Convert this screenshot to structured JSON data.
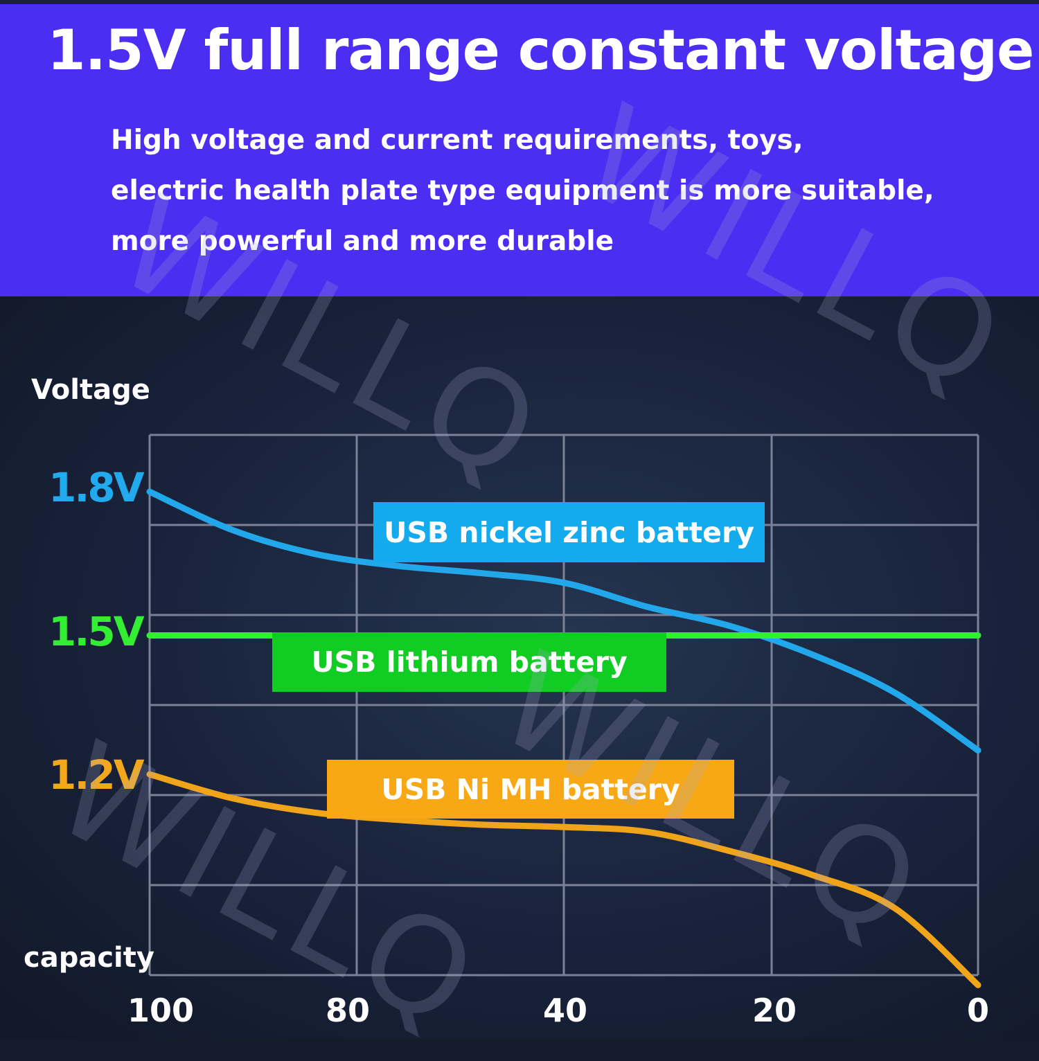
{
  "header": {
    "title": "1.5V full range constant voltage",
    "description_lines": [
      "High voltage and current requirements, toys,",
      "electric health plate type equipment is more suitable,",
      "more powerful and more durable"
    ]
  },
  "watermark_text": "WILLQ",
  "chart_data": {
    "type": "line",
    "ylabel": "Voltage",
    "xlabel": "capacity",
    "x_ticks": [
      "100",
      "80",
      "40",
      "20",
      "0"
    ],
    "y_ticks": [
      {
        "label": "1.8V",
        "value": 1.8,
        "color": "#22aaee"
      },
      {
        "label": "1.5V",
        "value": 1.5,
        "color": "#33ee33"
      },
      {
        "label": "1.2V",
        "value": 1.2,
        "color": "#f2a81a"
      }
    ],
    "grid": true,
    "series": [
      {
        "name": "USB nickel zinc battery",
        "color": "#22a8ea",
        "label_bg": "#14aaee",
        "x": [
          100,
          90,
          80,
          70,
          60,
          50,
          40,
          30,
          20,
          10,
          0
        ],
        "y": [
          1.8,
          1.72,
          1.67,
          1.645,
          1.63,
          1.61,
          1.56,
          1.52,
          1.46,
          1.38,
          1.26
        ]
      },
      {
        "name": "USB lithium battery",
        "color": "#33ee33",
        "label_bg": "#11cc22",
        "x": [
          100,
          0
        ],
        "y": [
          1.5,
          1.5
        ]
      },
      {
        "name": "USB Ni MH battery",
        "color": "#f0a41a",
        "label_bg": "#f7a814",
        "x": [
          100,
          90,
          80,
          70,
          60,
          50,
          40,
          30,
          20,
          10,
          0
        ],
        "y": [
          1.21,
          1.16,
          1.13,
          1.115,
          1.105,
          1.1,
          1.09,
          1.05,
          1.0,
          0.93,
          0.77
        ]
      }
    ]
  }
}
